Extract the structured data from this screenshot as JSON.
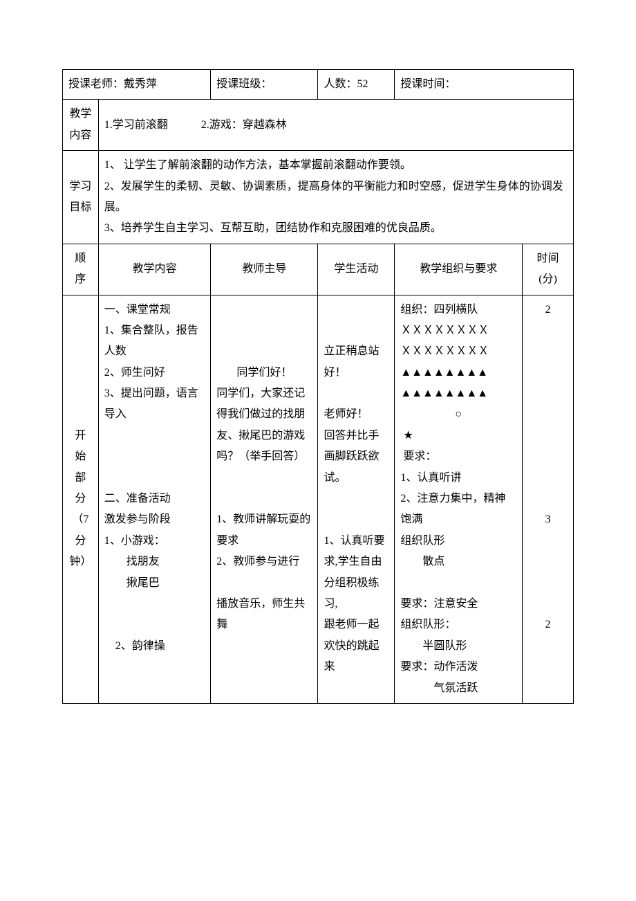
{
  "header": {
    "teacher_label": "授课老师：",
    "teacher_value": "戴秀萍",
    "class_label": "授课班级：",
    "class_value": "",
    "people_label": "人数：",
    "people_value": "52",
    "time_label": "授课时间：",
    "time_value": ""
  },
  "teaching_content": {
    "label": "教学\n内容",
    "item1": "1.学习前滚翻",
    "item2": "2.游戏：穿越森林"
  },
  "learning_goals": {
    "label": "学习\n目标",
    "g1": "1、 让学生了解前滚翻的动作方法，基本掌握前滚翻动作要领。",
    "g2": "2、发展学生的柔韧、灵敏、协调素质，提高身体的平衡能力和时空感，促进学生身体的协调发展。",
    "g3": "3、培养学生自主学习、互帮互助，团结协作和克服困难的优良品质。"
  },
  "table_headers": {
    "seq": "顺\n序",
    "content": "教学内容",
    "teacher": "教师主导",
    "student": "学生活动",
    "org": "教学组织与要求",
    "time": "时间\n(分)"
  },
  "section1": {
    "seq_label": "开\n始\n部\n分\n（7分\n钟）",
    "content": {
      "h1": "一、课堂常规",
      "l1": "1、集合整队，报告人数",
      "l2": "2、师生问好",
      "l3": "3、提出问题，语言导入",
      "h2": "二、准备活动",
      "sub": "激发参与阶段",
      "g1": "1、小游戏：",
      "g1a": "找朋友",
      "g1b": "揪尾巴",
      "g2": "2、韵律操"
    },
    "teacher": {
      "t1": "同学们好！",
      "t2": "同学们，大家还记得我们做过的找朋友、揪尾巴的游戏吗？（举手回答）",
      "t3": "1、教师讲解玩耍的要求",
      "t4": "2、教师参与进行",
      "t5": "播放音乐，师生共舞"
    },
    "student": {
      "s1": "立正稍息站好！",
      "s2": "老师好！",
      "s3": "回答并比手画脚跃跃欲试。",
      "s4": "1、认真听要求,学生自由分组积极练习,",
      "s5": "跟老师一起欢快的跳起来"
    },
    "org": {
      "o1": "组织：四列横队",
      "row_x": "ＸＸＸＸＸＸＸＸ",
      "row_tri": "▲▲▲▲▲▲▲▲",
      "circle": "○",
      "star": "★",
      "req_label": "要求：",
      "r1": "1、认真听讲",
      "r2": "2、注意力集中，精神饱满",
      "o2": "组织队形",
      "o2a": "散点",
      "r3": "要求：注意安全",
      "o3": "组织队形：",
      "o3a": "半圆队形",
      "r4": "要求：动作活泼",
      "r4a": "气氛活跃"
    },
    "times": {
      "t1": "2",
      "t2": "3",
      "t3": "2"
    }
  },
  "colors": {
    "border": "#000000",
    "background": "#ffffff",
    "text": "#000000"
  }
}
